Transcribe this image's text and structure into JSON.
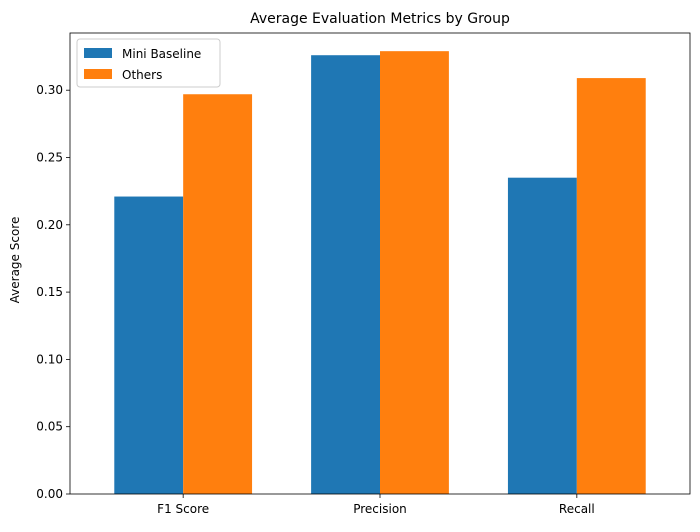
{
  "chart_data": {
    "type": "bar",
    "title": "Average Evaluation Metrics by Group",
    "xlabel": "",
    "ylabel": "Average Score",
    "categories": [
      "F1 Score",
      "Precision",
      "Recall"
    ],
    "series": [
      {
        "name": "Mini Baseline",
        "color": "#1f77b4",
        "values": [
          0.221,
          0.326,
          0.235
        ]
      },
      {
        "name": "Others",
        "color": "#ff7f0e",
        "values": [
          0.297,
          0.329,
          0.309
        ]
      }
    ],
    "ylim": [
      0,
      0.3425
    ],
    "yticks": [
      "0.00",
      "0.05",
      "0.10",
      "0.15",
      "0.20",
      "0.25",
      "0.30"
    ],
    "legend": {
      "position": "top-left"
    },
    "grid": false
  }
}
